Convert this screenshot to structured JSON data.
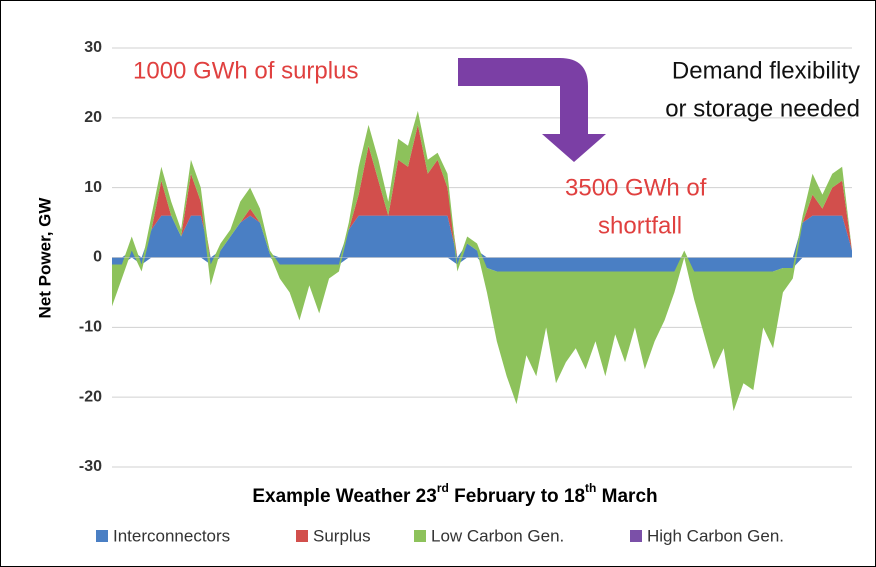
{
  "chart_data": {
    "type": "stacked_area",
    "y_label": "Net Power, GW",
    "x_label_parts": [
      "Example Weather 23",
      "rd",
      " February to 18",
      "th",
      " March"
    ],
    "annotations": [
      {
        "text": "1000 GWh of surplus",
        "color": "#e0403f"
      },
      {
        "text": "Demand flexibility",
        "color": "#111111"
      },
      {
        "text": "or storage needed",
        "color": "#111111"
      },
      {
        "text": "3500 GWh of",
        "color": "#e0403f"
      },
      {
        "text": "shortfall",
        "color": "#e0403f"
      }
    ],
    "categories": [
      null,
      null,
      null,
      null,
      null,
      null,
      null,
      null,
      null,
      null,
      null,
      null,
      null,
      null,
      null,
      null,
      null,
      null,
      null,
      null,
      null,
      null,
      null,
      null,
      null,
      null,
      null,
      null,
      null,
      null,
      null,
      null,
      null,
      null,
      null,
      null,
      null,
      null,
      null,
      null,
      null,
      null,
      null,
      null,
      null,
      null,
      null,
      null,
      null,
      null,
      null,
      null,
      null,
      null,
      null,
      null,
      null,
      null,
      null,
      null,
      null,
      null,
      null,
      null,
      null,
      null,
      null,
      null,
      null,
      null,
      null,
      null,
      null,
      null,
      null,
      null
    ],
    "ylim": [
      -30,
      30
    ],
    "yticks": [
      -30,
      -20,
      -10,
      0,
      10,
      20,
      30
    ],
    "grid": true,
    "legend": "bottom",
    "series": [
      {
        "name": "Interconnectors",
        "color": "#4a7fc4",
        "values": [
          -1,
          -1,
          1,
          -1,
          4,
          6,
          6,
          3,
          6,
          6,
          -1,
          1,
          3,
          5,
          6,
          5,
          0.5,
          -1,
          -1,
          -1,
          -1,
          -1,
          -1,
          -1,
          4,
          6,
          6,
          6,
          6,
          6,
          6,
          6,
          6,
          6,
          6,
          -1,
          2,
          1,
          -1.5,
          -2,
          -2,
          -2,
          -2,
          -2,
          -2,
          -2,
          -2,
          -2,
          -2,
          -2,
          -2,
          -2,
          -2,
          -2,
          -2,
          -2,
          -2,
          -2,
          0,
          -2,
          -2,
          -2,
          -2,
          -2,
          -2,
          -2,
          -2,
          -2,
          -1.5,
          -1.5,
          5,
          6,
          6,
          6,
          6,
          1
        ]
      },
      {
        "name": "Surplus",
        "color": "#d24f4c",
        "values": [
          0,
          0,
          0,
          0,
          0,
          5,
          0,
          0,
          6,
          2,
          0,
          0,
          0,
          0,
          1,
          0,
          0,
          0,
          0,
          0,
          0,
          0,
          0,
          0,
          0,
          3,
          10,
          5,
          0,
          8,
          7,
          13,
          6,
          8,
          4,
          0,
          0,
          0,
          0,
          0,
          0,
          0,
          0,
          0,
          0,
          0,
          0,
          0,
          0,
          0,
          0,
          0,
          0,
          0,
          0,
          0,
          0,
          0,
          0,
          0,
          0,
          0,
          0,
          0,
          0,
          0,
          0,
          0,
          0,
          0,
          0,
          3,
          1,
          4,
          5,
          0
        ]
      },
      {
        "name": "Low Carbon Gen.",
        "color": "#8dc25b",
        "values": [
          -6,
          -2,
          2,
          -1,
          2,
          2,
          2,
          1,
          2,
          2,
          -3,
          1,
          1,
          3,
          3,
          2,
          0.5,
          -2,
          -4,
          -8,
          -3,
          -7,
          -2,
          -1,
          1,
          4,
          3,
          3,
          2,
          3,
          3,
          2,
          2,
          1,
          2,
          -1,
          1,
          1,
          -3.5,
          -10,
          -15,
          -19,
          -12,
          -15,
          -8,
          -16,
          -13,
          -11,
          -14,
          -10,
          -15,
          -9,
          -13,
          -8,
          -14,
          -10,
          -7,
          -3,
          1,
          -4,
          -9,
          -14,
          -11,
          -20,
          -16,
          -17,
          -8,
          -11,
          -3.5,
          -1.5,
          1,
          3,
          2,
          2,
          2,
          0
        ]
      },
      {
        "name": "High Carbon Gen.",
        "color": "#7b50a8",
        "values": [
          0,
          0,
          0,
          0,
          0,
          0,
          0,
          0,
          0,
          0,
          0,
          0,
          0,
          0,
          0,
          0,
          0,
          0,
          0,
          0,
          0,
          0,
          0,
          0,
          0,
          0,
          0,
          0,
          0,
          0,
          0,
          0,
          0,
          0,
          0,
          0,
          0,
          0,
          0,
          0,
          0,
          0,
          0,
          0,
          0,
          0,
          0,
          0,
          0,
          0,
          0,
          0,
          0,
          0,
          0,
          0,
          0,
          0,
          0,
          0,
          0,
          0,
          0,
          0,
          0,
          0,
          0,
          0,
          0,
          0,
          0,
          0,
          0,
          0,
          0,
          0
        ]
      }
    ]
  }
}
